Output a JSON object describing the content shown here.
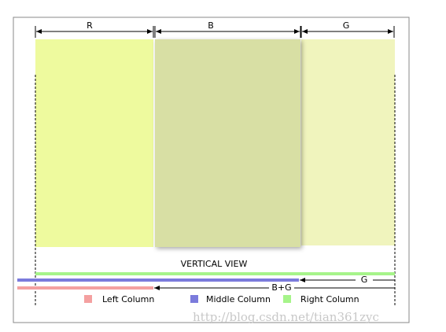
{
  "labels": {
    "r": "R",
    "b": "B",
    "g": "G"
  },
  "view_title": "VERTICAL VIEW",
  "arrows": {
    "b_plus_g": "B+G",
    "g": "G"
  },
  "legend": [
    "Left Column",
    "Middle Column",
    "Right Column"
  ],
  "watermark": "http://blog.csdn.net/tian361zyc"
}
